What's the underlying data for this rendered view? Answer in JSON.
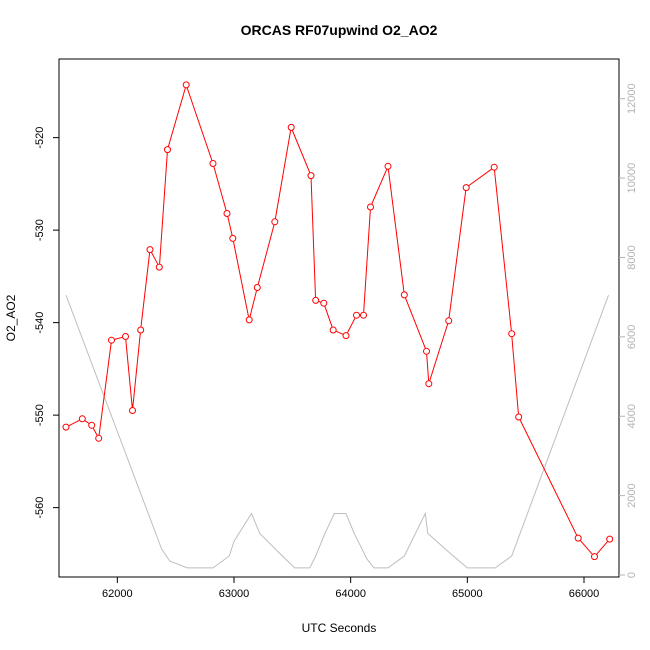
{
  "chart_data": {
    "type": "line",
    "title": "ORCAS RF07upwind O2_AO2",
    "xlabel": "UTC Seconds",
    "ylabel": "O2_AO2",
    "xlim": [
      61500,
      66300
    ],
    "ylim": [
      -567.5,
      -511.5
    ],
    "y2lim": [
      -50,
      13000
    ],
    "x_ticks": [
      62000,
      63000,
      64000,
      65000,
      66000
    ],
    "y_ticks": [
      -520,
      -530,
      -540,
      -550,
      -560
    ],
    "y2_ticks": [
      0,
      2000,
      4000,
      6000,
      8000,
      10000,
      12000
    ],
    "grid": false,
    "legend": "none",
    "colors": {
      "primary": "#ff0000",
      "secondary": "#bebebe",
      "axis": "#000000",
      "right_axis": "#b3b3b3"
    },
    "series": [
      {
        "role": "primary",
        "x": [
          61560,
          61700,
          61780,
          61840,
          61950,
          62070,
          62130,
          62200,
          62280,
          62360,
          62430,
          62590,
          62820,
          62940,
          62990,
          63130,
          63200,
          63350,
          63490,
          63660,
          63700,
          63770,
          63850,
          63960,
          64050,
          64110,
          64170,
          64320,
          64460,
          64650,
          64670,
          64840,
          64990,
          65230,
          65380,
          65440,
          65950,
          66090,
          66220
        ],
        "y": [
          -551.3,
          -550.4,
          -551.1,
          -552.5,
          -541.9,
          -541.5,
          -549.5,
          -540.8,
          -532.1,
          -534.0,
          -521.3,
          -514.3,
          -522.8,
          -528.2,
          -530.9,
          -539.7,
          -536.2,
          -529.1,
          -518.9,
          -524.1,
          -537.6,
          -537.9,
          -540.8,
          -541.4,
          -539.2,
          -539.2,
          -527.5,
          -523.1,
          -537.0,
          -543.1,
          -546.6,
          -539.8,
          -525.4,
          -523.2,
          -541.2,
          -550.2,
          -563.3,
          -565.3,
          -563.4
        ]
      },
      {
        "role": "secondary",
        "x": [
          61560,
          62380,
          62450,
          62600,
          62820,
          62960,
          63000,
          63150,
          63220,
          63380,
          63520,
          63650,
          63700,
          63780,
          63860,
          63960,
          64030,
          64140,
          64200,
          64320,
          64460,
          64640,
          64660,
          64840,
          65000,
          65240,
          65380,
          66210
        ],
        "y": [
          7050,
          650,
          350,
          180,
          180,
          480,
          850,
          1550,
          1050,
          580,
          180,
          180,
          480,
          1050,
          1550,
          1550,
          1050,
          400,
          180,
          180,
          480,
          1550,
          1050,
          580,
          180,
          180,
          480,
          7050
        ]
      }
    ]
  }
}
